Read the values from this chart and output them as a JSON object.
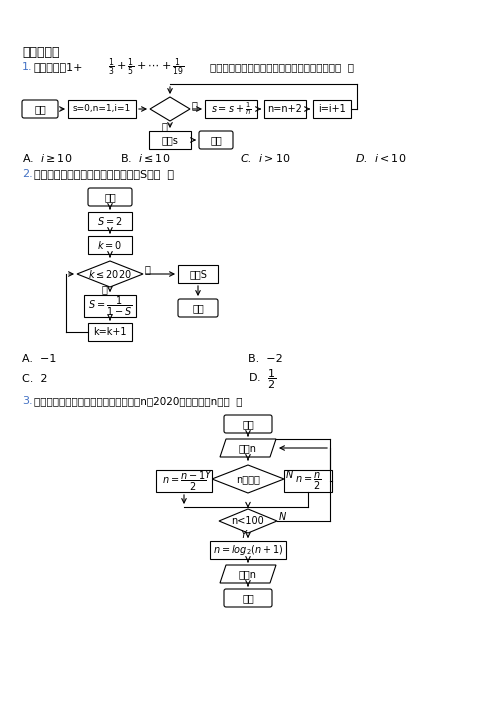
{
  "bg_color": "#ffffff",
  "section_title": "一、选择题",
  "q1_label": "1.",
  "q1_text": "如图是计算1+",
  "q1_formula": "$\\frac{1}{3}+\\frac{1}{5}+\\cdots+\\frac{1}{19}$",
  "q1_suffix": "的值的一个程序框图，其中判断框内应填的是（  ）",
  "q2_label": "2.",
  "q2_text": "执行如图所示的程序框图，则输出的S＝（  ）",
  "q3_label": "3.",
  "q3_text": "运行下图所示的程序框图，如果输入的n＝2020，则输出的n＝（  ）"
}
